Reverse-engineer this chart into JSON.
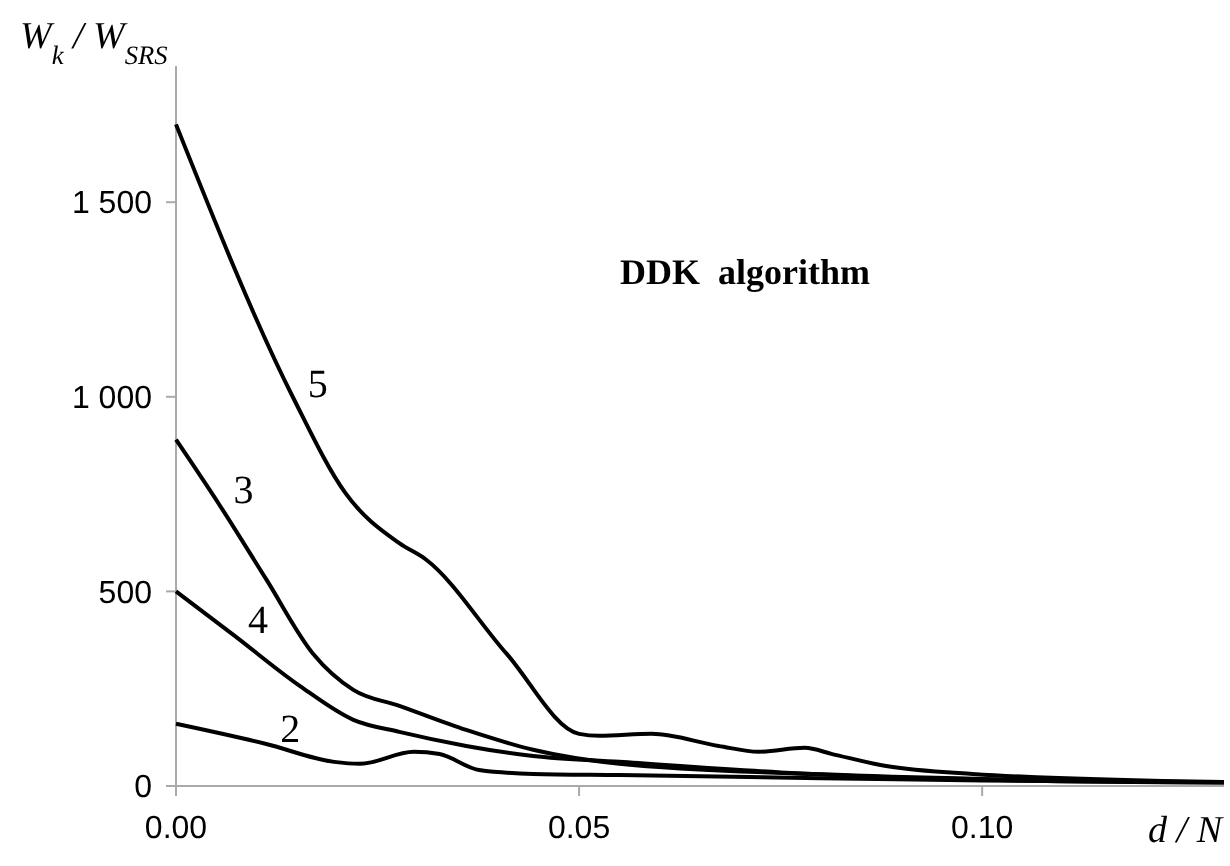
{
  "chart_data": {
    "type": "line",
    "xlabel": "d / N",
    "ylabel": "W$_{k}$ / W$_{SRS}$",
    "annotations": [
      "DDK  algorithm"
    ],
    "xlim": [
      0,
      0.13
    ],
    "ylim": [
      0,
      1850
    ],
    "xticks": [
      {
        "value": 0,
        "label": "0.00"
      },
      {
        "value": 0.05,
        "label": "0.05"
      },
      {
        "value": 0.1,
        "label": "0.10"
      }
    ],
    "yticks": [
      0,
      500,
      {
        "value": 1000,
        "label": "1 000"
      },
      {
        "value": 1500,
        "label": "1 500"
      }
    ],
    "grid": false,
    "marker": "none",
    "line_style": "solid",
    "series": [
      {
        "name": "5",
        "color": "#000000",
        "x": [
          0,
          0.0146,
          0.021,
          0.0277,
          0.031,
          0.041,
          0.05,
          0.0525,
          0.059,
          0.0673,
          0.0723,
          0.078,
          0.0814,
          0.0879,
          0.0988,
          0.13
        ],
        "values": [
          1700,
          995,
          753,
          624,
          582,
          340,
          134,
          129,
          134,
          103,
          88,
          98,
          82,
          52,
          31,
          10
        ]
      },
      {
        "name": "3",
        "color": "#000000",
        "x": [
          0,
          0.0054,
          0.0112,
          0.017,
          0.022,
          0.0277,
          0.036,
          0.0443,
          0.055,
          0.08,
          0.1,
          0.13
        ],
        "values": [
          890,
          722,
          531,
          340,
          247,
          206,
          144,
          93,
          57,
          30,
          18,
          10
        ]
      },
      {
        "name": "4",
        "color": "#000000",
        "x": [
          0,
          0.0072,
          0.0153,
          0.022,
          0.0277,
          0.036,
          0.0443,
          0.055,
          0.075,
          0.1,
          0.13
        ],
        "values": [
          500,
          387,
          258,
          170,
          139,
          103,
          77,
          62,
          35,
          16,
          9
        ]
      },
      {
        "name": "2",
        "color": "#000000",
        "x": [
          0,
          0.0112,
          0.0196,
          0.0228,
          0.0295,
          0.0327,
          0.0376,
          0.0443,
          0.055,
          0.08,
          0.1,
          0.13
        ],
        "values": [
          160,
          108,
          62,
          57,
          88,
          82,
          41,
          31,
          28,
          20,
          14,
          9
        ]
      }
    ]
  }
}
